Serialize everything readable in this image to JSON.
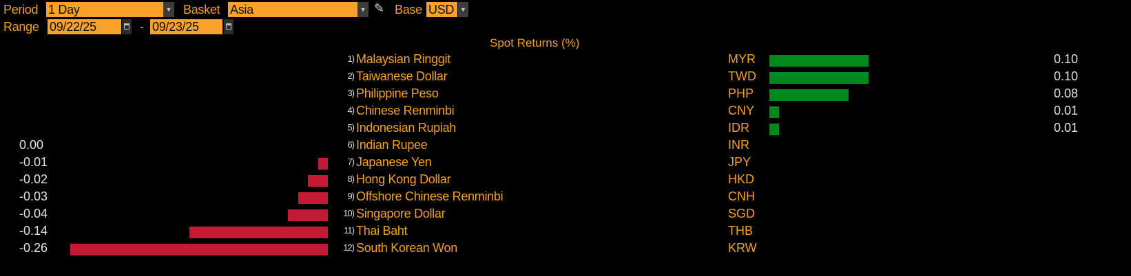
{
  "controls": {
    "period_label": "Period",
    "period_value": "1 Day",
    "basket_label": "Basket",
    "basket_value": "Asia",
    "base_label": "Base",
    "base_value": "USD",
    "range_label": "Range",
    "range_start": "09/22/25",
    "range_sep": "-",
    "range_end": "09/23/25",
    "icons": {
      "dropdown": "chevron-down-icon",
      "edit": "pencil-icon",
      "calendar": "calendar-icon"
    }
  },
  "colors": {
    "accent": "#f9a12a",
    "positive": "#008a1e",
    "negative": "#c41a35",
    "text": "#f4a11e"
  },
  "chart_data": {
    "type": "bar",
    "orientation": "horizontal",
    "title": "Spot Returns (%)",
    "categories": [
      "Malaysian Ringgit",
      "Taiwanese Dollar",
      "Philippine Peso",
      "Chinese Renminbi",
      "Indonesian Rupiah",
      "Indian Rupee",
      "Japanese Yen",
      "Hong Kong Dollar",
      "Offshore Chinese Renminbi",
      "Singapore Dollar",
      "Thai Baht",
      "South Korean Won"
    ],
    "rows": [
      {
        "rank": "1)",
        "name": "Malaysian Ringgit",
        "code": "MYR",
        "value": 0.1,
        "label": "0.10"
      },
      {
        "rank": "2)",
        "name": "Taiwanese Dollar",
        "code": "TWD",
        "value": 0.1,
        "label": "0.10"
      },
      {
        "rank": "3)",
        "name": "Philippine Peso",
        "code": "PHP",
        "value": 0.08,
        "label": "0.08"
      },
      {
        "rank": "4)",
        "name": "Chinese Renminbi",
        "code": "CNY",
        "value": 0.01,
        "label": "0.01"
      },
      {
        "rank": "5)",
        "name": "Indonesian Rupiah",
        "code": "IDR",
        "value": 0.01,
        "label": "0.01"
      },
      {
        "rank": "6)",
        "name": "Indian Rupee",
        "code": "INR",
        "value": 0.0,
        "label": "0.00"
      },
      {
        "rank": "7)",
        "name": "Japanese Yen",
        "code": "JPY",
        "value": -0.01,
        "label": "-0.01"
      },
      {
        "rank": "8)",
        "name": "Hong Kong Dollar",
        "code": "HKD",
        "value": -0.02,
        "label": "-0.02"
      },
      {
        "rank": "9)",
        "name": "Offshore Chinese Renminbi",
        "code": "CNH",
        "value": -0.03,
        "label": "-0.03"
      },
      {
        "rank": "10)",
        "name": "Singapore Dollar",
        "code": "SGD",
        "value": -0.04,
        "label": "-0.04"
      },
      {
        "rank": "11)",
        "name": "Thai Baht",
        "code": "THB",
        "value": -0.14,
        "label": "-0.14"
      },
      {
        "rank": "12)",
        "name": "South Korean Won",
        "code": "KRW",
        "value": -0.26,
        "label": "-0.26"
      }
    ]
  }
}
